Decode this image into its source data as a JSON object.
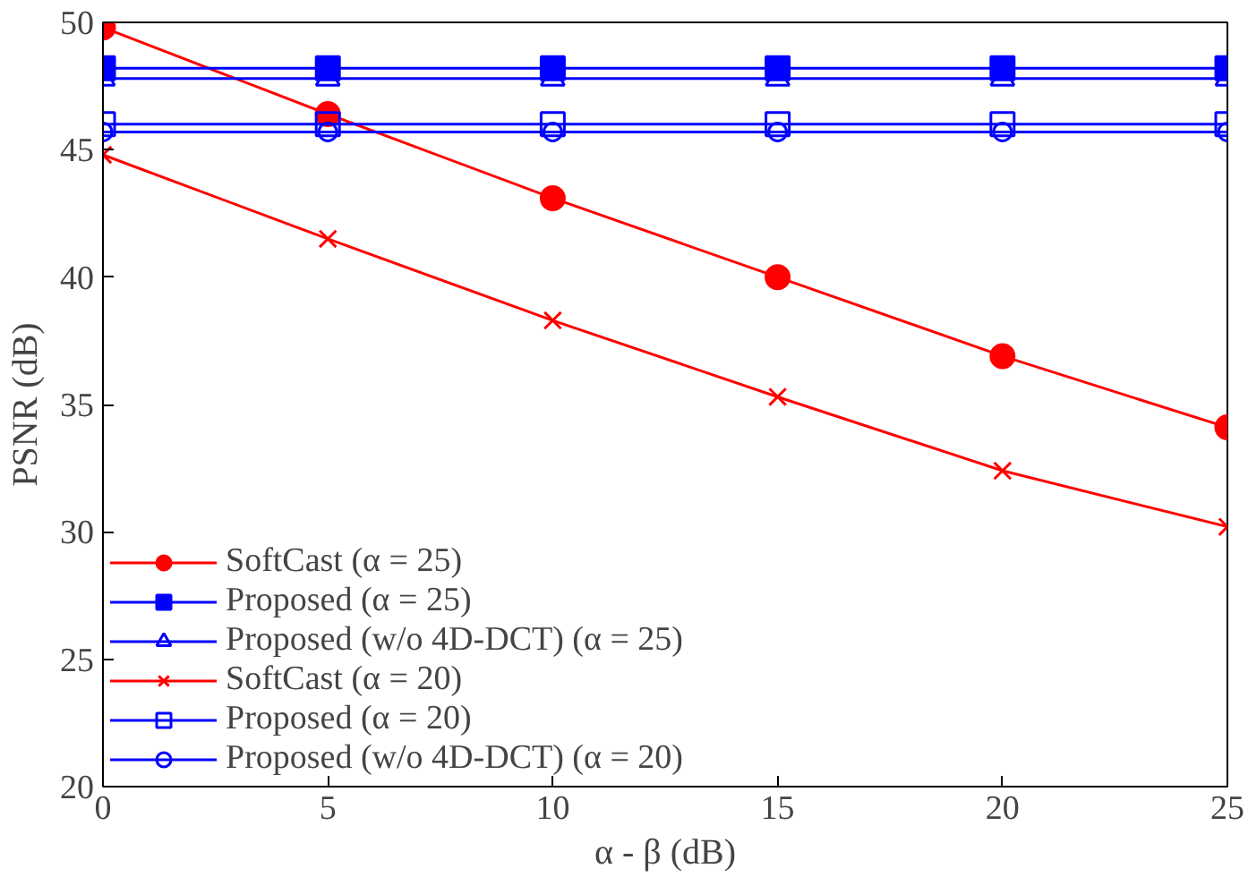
{
  "chart_data": {
    "type": "line",
    "xlabel": "α - β (dB)",
    "ylabel": "PSNR (dB)",
    "x": [
      0,
      5,
      10,
      15,
      20,
      25
    ],
    "xlim": [
      0,
      25
    ],
    "xticks": [
      0,
      5,
      10,
      15,
      20,
      25
    ],
    "ylim": [
      20,
      50
    ],
    "yticks": [
      20,
      25,
      30,
      35,
      40,
      45,
      50
    ],
    "grid": false,
    "legend": "bottom left",
    "line_style": "solid",
    "series": [
      {
        "name": "SoftCast (α = 25)",
        "color": "#ff0000",
        "marker": "circle",
        "values": [
          49.8,
          46.4,
          43.1,
          40.0,
          36.9,
          34.1
        ]
      },
      {
        "name": "Proposed (α = 25)",
        "color": "#0000ff",
        "marker": "square",
        "values": [
          48.2,
          48.2,
          48.2,
          48.2,
          48.2,
          48.2
        ]
      },
      {
        "name": "Proposed (w/o 4D-DCT) (α = 25)",
        "color": "#0000ff",
        "marker": "triangle_open",
        "values": [
          47.8,
          47.8,
          47.8,
          47.8,
          47.8,
          47.8
        ]
      },
      {
        "name": "SoftCast (α = 20)",
        "color": "#ff0000",
        "marker": "x",
        "values": [
          44.8,
          41.5,
          38.3,
          35.3,
          32.4,
          30.2
        ]
      },
      {
        "name": "Proposed (α = 20)",
        "color": "#0000ff",
        "marker": "square_open",
        "values": [
          46.0,
          46.0,
          46.0,
          46.0,
          46.0,
          46.0
        ]
      },
      {
        "name": "Proposed (w/o 4D-DCT) (α = 20)",
        "color": "#0000ff",
        "marker": "circle_open",
        "values": [
          45.7,
          45.7,
          45.7,
          45.7,
          45.7,
          45.7
        ]
      }
    ]
  }
}
